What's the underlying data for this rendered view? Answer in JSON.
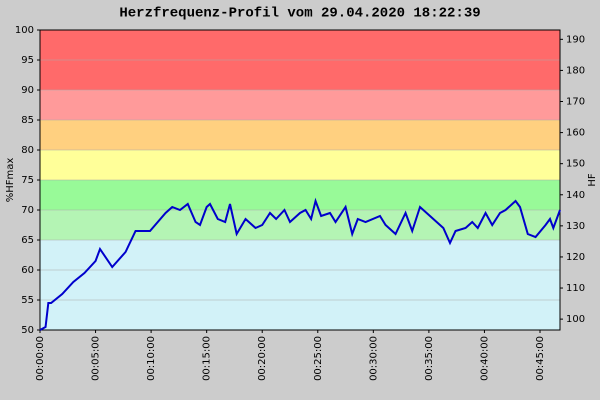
{
  "chart_data": {
    "type": "line",
    "title": "Herzfrequenz-Profil vom 29.04.2020 18:22:39",
    "y_label": "%HFmax",
    "y2_label": "HF",
    "x": [
      0,
      30,
      45,
      60,
      120,
      180,
      240,
      300,
      324,
      390,
      462,
      516,
      594,
      678,
      714,
      756,
      798,
      840,
      864,
      900,
      918,
      960,
      1000,
      1026,
      1062,
      1110,
      1164,
      1200,
      1242,
      1275,
      1320,
      1350,
      1404,
      1434,
      1464,
      1488,
      1518,
      1566,
      1596,
      1650,
      1686,
      1716,
      1758,
      1836,
      1866,
      1920,
      1974,
      2010,
      2052,
      2106,
      2142,
      2178,
      2214,
      2244,
      2298,
      2334,
      2364,
      2406,
      2442,
      2484,
      2514,
      2568,
      2592,
      2634,
      2676,
      2730,
      2754,
      2772,
      2808
    ],
    "series": [
      {
        "color": "#0000cc",
        "values": [
          50,
          50.5,
          54.5,
          54.5,
          56,
          58,
          59.5,
          61.5,
          63.5,
          60.5,
          63,
          66.5,
          66.5,
          69.5,
          70.5,
          70,
          71,
          68,
          67.5,
          70.5,
          71,
          68.5,
          68,
          71,
          66,
          68.5,
          67,
          67.5,
          69.5,
          68.5,
          70,
          68,
          69.5,
          70,
          68.5,
          71.5,
          69,
          69.5,
          68,
          70.5,
          66,
          68.5,
          68,
          69,
          67.5,
          66,
          69.5,
          66.5,
          70.5,
          69,
          68,
          67,
          64.5,
          66.5,
          67,
          68,
          67,
          69.5,
          67.5,
          69.5,
          70,
          71.5,
          70.5,
          66,
          65.5,
          67.5,
          68.5,
          67,
          70
        ]
      }
    ],
    "xlim": [
      0,
      2808
    ],
    "xticks": [
      {
        "value": 0,
        "label": "00:00:00"
      },
      {
        "value": 300,
        "label": "00:05:00"
      },
      {
        "value": 600,
        "label": "00:10:00"
      },
      {
        "value": 900,
        "label": "00:15:00"
      },
      {
        "value": 1200,
        "label": "00:20:00"
      },
      {
        "value": 1500,
        "label": "00:25:00"
      },
      {
        "value": 1800,
        "label": "00:30:00"
      },
      {
        "value": 2100,
        "label": "00:35:00"
      },
      {
        "value": 2400,
        "label": "00:40:00"
      },
      {
        "value": 2700,
        "label": "00:45:00"
      }
    ],
    "ylim": [
      50,
      100
    ],
    "yticks": [
      50,
      55,
      60,
      65,
      70,
      75,
      80,
      85,
      90,
      95,
      100
    ],
    "y2lim": [
      96.5,
      193
    ],
    "y2ticks": [
      100,
      110,
      120,
      130,
      140,
      150,
      160,
      170,
      180,
      190
    ],
    "grid": true,
    "zones": [
      {
        "from": 50,
        "to": 65,
        "color": "#d2f2f8"
      },
      {
        "from": 65,
        "to": 70,
        "color": "#b4f4b4"
      },
      {
        "from": 70,
        "to": 75,
        "color": "#98fa98"
      },
      {
        "from": 75,
        "to": 80,
        "color": "#ffff99"
      },
      {
        "from": 80,
        "to": 85,
        "color": "#ffd080"
      },
      {
        "from": 85,
        "to": 90,
        "color": "#ff9a9a"
      },
      {
        "from": 90,
        "to": 100,
        "color": "#ff6a6a"
      }
    ]
  }
}
